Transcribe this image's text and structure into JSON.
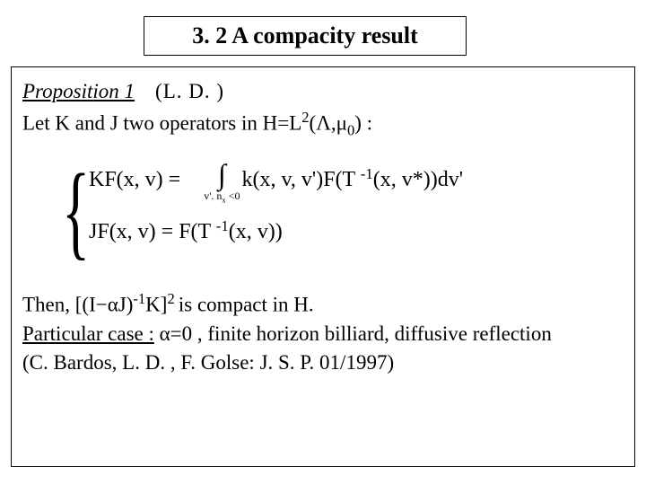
{
  "title": "3. 2 A compacity result",
  "proposition": {
    "label": "Proposition 1",
    "attribution": "(L. D. )"
  },
  "let_line": {
    "prefix": "Let K and J two operators in  H=L",
    "sup1": "2",
    "after_sup": "(Λ,μ",
    "sub0": "0",
    "suffix": ") :"
  },
  "equations": {
    "row1": {
      "lhs": "KF(x, v) =",
      "int_limit": "v'. n",
      "int_limit_sub": "x",
      "int_limit_tail": " <0",
      "integrand_prefix": "k(x, v, v')F(T ",
      "integrand_sup": "-1",
      "integrand_suffix": "(x, v*))dv'"
    },
    "row2": {
      "prefix": "JF(x, v) = F(T ",
      "sup": "-1",
      "suffix": "(x, v))"
    }
  },
  "then_line": {
    "prefix": "Then, [(I−αJ)",
    "sup1": "-1",
    "mid": "K]",
    "sup2": "2 ",
    "suffix": "is compact in H."
  },
  "particular": {
    "label": "Particular case :",
    "text": " α=0 , finite horizon billiard, diffusive reflection"
  },
  "references": "(C. Bardos, L. D. , F. Golse: J. S. P. 01/1997)"
}
